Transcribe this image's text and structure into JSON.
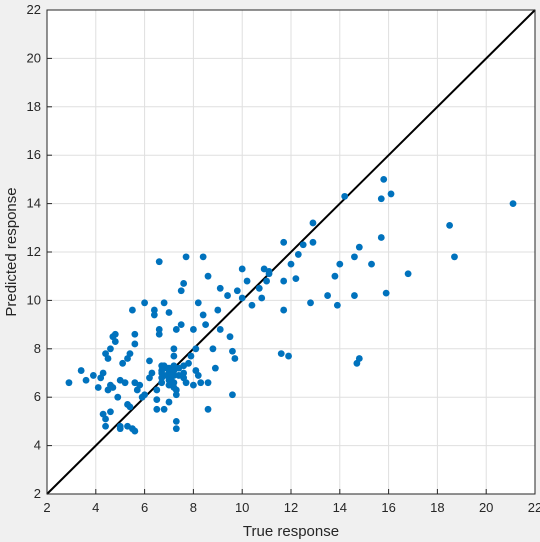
{
  "chart_data": {
    "type": "scatter",
    "title": "",
    "xlabel": "True response",
    "ylabel": "Predicted response",
    "xlim": [
      2,
      22
    ],
    "ylim": [
      2,
      22
    ],
    "xticks": [
      2,
      4,
      6,
      8,
      10,
      12,
      14,
      16,
      18,
      20,
      22
    ],
    "yticks": [
      2,
      4,
      6,
      8,
      10,
      12,
      14,
      16,
      18,
      20,
      22
    ],
    "grid": true,
    "marker_color": "#0072bd",
    "reference_line": {
      "from": [
        2,
        2
      ],
      "to": [
        22,
        22
      ],
      "color": "#000000"
    },
    "series": [
      {
        "points": [
          [
            2.9,
            6.6
          ],
          [
            3.4,
            7.1
          ],
          [
            3.6,
            6.7
          ],
          [
            3.9,
            6.9
          ],
          [
            4.1,
            6.4
          ],
          [
            4.2,
            6.8
          ],
          [
            4.3,
            7.0
          ],
          [
            4.3,
            5.3
          ],
          [
            4.4,
            5.1
          ],
          [
            4.4,
            4.8
          ],
          [
            4.6,
            5.4
          ],
          [
            4.5,
            7.6
          ],
          [
            4.4,
            7.8
          ],
          [
            4.6,
            8.0
          ],
          [
            4.7,
            8.5
          ],
          [
            4.8,
            8.6
          ],
          [
            4.8,
            8.3
          ],
          [
            4.6,
            6.5
          ],
          [
            4.5,
            6.3
          ],
          [
            4.7,
            6.4
          ],
          [
            4.9,
            6.0
          ],
          [
            5.0,
            6.7
          ],
          [
            5.2,
            6.6
          ],
          [
            5.0,
            4.8
          ],
          [
            5.0,
            4.7
          ],
          [
            5.3,
            5.7
          ],
          [
            5.4,
            5.6
          ],
          [
            5.3,
            4.8
          ],
          [
            5.5,
            4.7
          ],
          [
            5.6,
            4.6
          ],
          [
            5.1,
            7.4
          ],
          [
            5.3,
            7.6
          ],
          [
            5.4,
            7.8
          ],
          [
            5.6,
            8.2
          ],
          [
            5.6,
            8.6
          ],
          [
            5.5,
            9.6
          ],
          [
            5.7,
            6.3
          ],
          [
            5.6,
            6.6
          ],
          [
            5.8,
            6.5
          ],
          [
            5.9,
            6.0
          ],
          [
            6.0,
            6.1
          ],
          [
            6.0,
            9.9
          ],
          [
            6.2,
            7.5
          ],
          [
            6.2,
            6.8
          ],
          [
            6.3,
            7.0
          ],
          [
            6.4,
            9.4
          ],
          [
            6.4,
            9.6
          ],
          [
            6.5,
            6.3
          ],
          [
            6.5,
            5.9
          ],
          [
            6.5,
            5.5
          ],
          [
            6.6,
            11.6
          ],
          [
            6.6,
            8.8
          ],
          [
            6.6,
            8.6
          ],
          [
            6.7,
            7.3
          ],
          [
            6.7,
            7.1
          ],
          [
            6.7,
            7.0
          ],
          [
            6.7,
            6.8
          ],
          [
            6.7,
            6.6
          ],
          [
            6.8,
            9.9
          ],
          [
            6.8,
            7.3
          ],
          [
            6.8,
            5.5
          ],
          [
            6.9,
            7.2
          ],
          [
            6.9,
            6.9
          ],
          [
            7.0,
            9.5
          ],
          [
            7.0,
            7.2
          ],
          [
            7.0,
            7.0
          ],
          [
            7.0,
            6.9
          ],
          [
            7.0,
            6.7
          ],
          [
            7.0,
            6.5
          ],
          [
            7.0,
            5.8
          ],
          [
            7.1,
            7.0
          ],
          [
            7.1,
            6.7
          ],
          [
            7.2,
            7.3
          ],
          [
            7.2,
            7.1
          ],
          [
            7.2,
            6.9
          ],
          [
            7.2,
            6.6
          ],
          [
            7.2,
            6.4
          ],
          [
            7.2,
            8.0
          ],
          [
            7.2,
            7.7
          ],
          [
            7.3,
            8.8
          ],
          [
            7.3,
            6.3
          ],
          [
            7.3,
            6.1
          ],
          [
            7.3,
            5.0
          ],
          [
            7.3,
            4.7
          ],
          [
            7.4,
            7.2
          ],
          [
            7.4,
            6.9
          ],
          [
            7.5,
            10.4
          ],
          [
            7.5,
            9.0
          ],
          [
            7.6,
            10.7
          ],
          [
            7.6,
            7.3
          ],
          [
            7.6,
            7.0
          ],
          [
            7.6,
            6.8
          ],
          [
            7.7,
            11.8
          ],
          [
            7.7,
            6.6
          ],
          [
            7.8,
            7.4
          ],
          [
            7.9,
            7.7
          ],
          [
            8.0,
            8.8
          ],
          [
            8.0,
            6.5
          ],
          [
            8.1,
            8.0
          ],
          [
            8.1,
            7.1
          ],
          [
            8.2,
            9.9
          ],
          [
            8.2,
            6.9
          ],
          [
            8.3,
            6.6
          ],
          [
            8.4,
            11.8
          ],
          [
            8.4,
            9.4
          ],
          [
            8.5,
            9.0
          ],
          [
            8.6,
            11.0
          ],
          [
            8.6,
            6.6
          ],
          [
            8.6,
            5.5
          ],
          [
            8.8,
            8.0
          ],
          [
            8.9,
            7.2
          ],
          [
            9.0,
            9.6
          ],
          [
            9.1,
            8.8
          ],
          [
            9.1,
            10.5
          ],
          [
            9.4,
            10.2
          ],
          [
            9.5,
            8.5
          ],
          [
            9.6,
            6.1
          ],
          [
            9.6,
            7.9
          ],
          [
            9.7,
            7.6
          ],
          [
            9.8,
            10.4
          ],
          [
            10.0,
            11.3
          ],
          [
            10.0,
            10.1
          ],
          [
            10.2,
            10.8
          ],
          [
            10.4,
            9.8
          ],
          [
            10.7,
            10.5
          ],
          [
            10.8,
            10.1
          ],
          [
            10.9,
            11.3
          ],
          [
            11.0,
            10.8
          ],
          [
            11.1,
            11.1
          ],
          [
            11.1,
            11.2
          ],
          [
            11.6,
            7.8
          ],
          [
            11.7,
            12.4
          ],
          [
            11.7,
            10.8
          ],
          [
            11.7,
            9.6
          ],
          [
            11.9,
            7.7
          ],
          [
            12.0,
            11.5
          ],
          [
            12.2,
            10.9
          ],
          [
            12.3,
            11.9
          ],
          [
            12.5,
            12.3
          ],
          [
            12.8,
            9.9
          ],
          [
            12.9,
            12.4
          ],
          [
            12.9,
            13.2
          ],
          [
            13.5,
            10.2
          ],
          [
            13.8,
            11.0
          ],
          [
            13.9,
            9.8
          ],
          [
            14.0,
            11.5
          ],
          [
            14.2,
            14.3
          ],
          [
            14.6,
            11.8
          ],
          [
            14.6,
            10.2
          ],
          [
            14.7,
            7.4
          ],
          [
            14.8,
            7.6
          ],
          [
            14.8,
            12.2
          ],
          [
            15.3,
            11.5
          ],
          [
            15.7,
            12.6
          ],
          [
            15.7,
            14.2
          ],
          [
            15.8,
            15.0
          ],
          [
            15.9,
            10.3
          ],
          [
            16.1,
            14.4
          ],
          [
            16.8,
            11.1
          ],
          [
            18.5,
            13.1
          ],
          [
            18.7,
            11.8
          ],
          [
            21.1,
            14.0
          ]
        ]
      }
    ]
  }
}
